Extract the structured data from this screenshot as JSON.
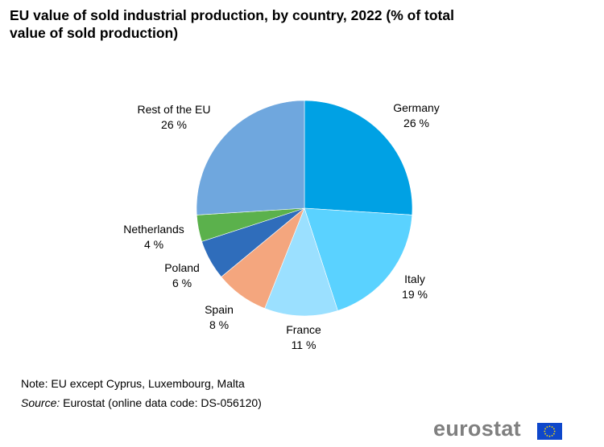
{
  "title": "EU value of sold industrial production, by country, 2022 (% of total value of sold production)",
  "chart_data": {
    "type": "pie",
    "title": "EU value of sold industrial production, by country, 2022 (% of total value of sold production)",
    "unit": "%",
    "slices": [
      {
        "label": "Germany",
        "value": 26,
        "display": "26 %",
        "color": "#00A1E4"
      },
      {
        "label": "Italy",
        "value": 19,
        "display": "19 %",
        "color": "#5AD2FF"
      },
      {
        "label": "France",
        "value": 11,
        "display": "11 %",
        "color": "#9BE0FF"
      },
      {
        "label": "Spain",
        "value": 8,
        "display": "8 %",
        "color": "#F4A67E"
      },
      {
        "label": "Poland",
        "value": 6,
        "display": "6 %",
        "color": "#2F6DBB"
      },
      {
        "label": "Netherlands",
        "value": 4,
        "display": "4 %",
        "color": "#5BB14C"
      },
      {
        "label": "Rest of the EU",
        "value": 26,
        "display": "26 %",
        "color": "#6FA7DE"
      }
    ]
  },
  "footer": {
    "note": "Note: EU except Cyprus, Luxembourg, Malta",
    "source_label": "Source:",
    "source_text": " Eurostat (online data code: DS-056120)"
  },
  "logo": {
    "text": "eurostat",
    "icon": "eu-flag-icon",
    "text_color": "#7F7F7F",
    "flag_color": "#0E47CB",
    "star_color": "#FFDD00"
  }
}
